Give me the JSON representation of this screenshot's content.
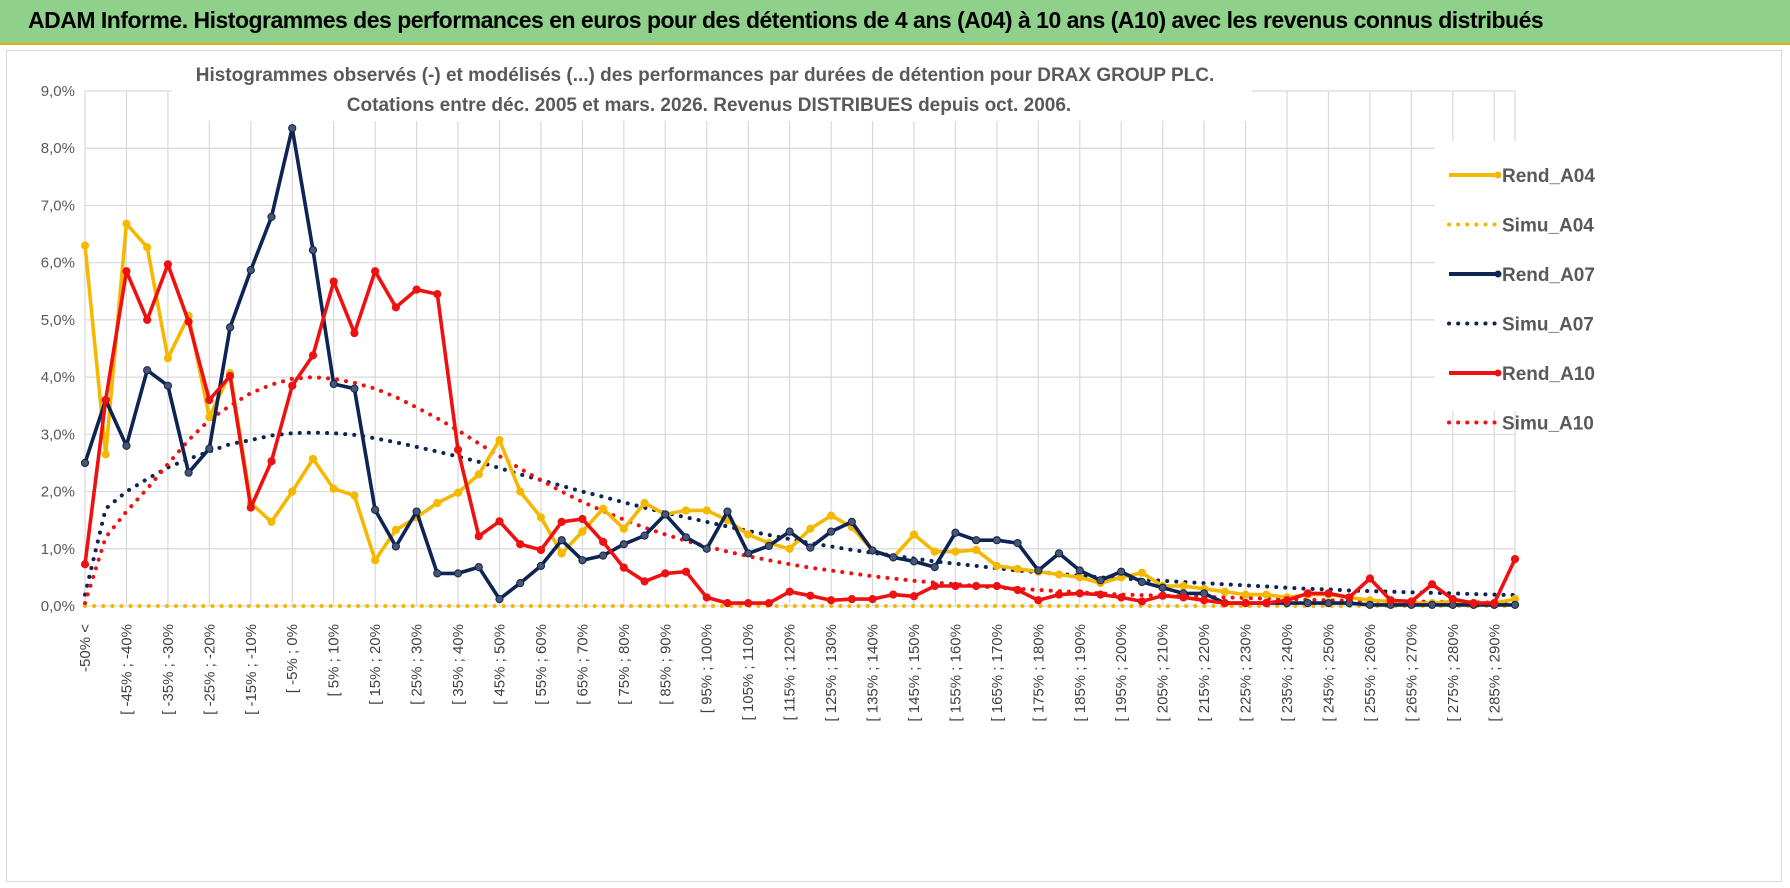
{
  "banner": {
    "title": "ADAM Informe. Histogrammes des performances en euros pour des détentions de 4 ans (A04) à 10 ans (A10) avec les revenus connus distribués"
  },
  "colors": {
    "A04": "#f5b800",
    "A07": "#0d2454",
    "A10": "#ee1111",
    "banner_bg": "#8fd18b",
    "grid": "#d9d9d9"
  },
  "chart_data": {
    "type": "line",
    "title": "Histogrammes observés (-) et modélisés (...) des performances par durées de détention pour DRAX GROUP PLC.",
    "subtitle": "Cotations entre déc. 2005 et mars. 2026. Revenus DISTRIBUES depuis oct. 2006.",
    "xlabel": "",
    "ylabel": "",
    "ylim": [
      0,
      9
    ],
    "y_ticks": [
      "0,0%",
      "1,0%",
      "2,0%",
      "3,0%",
      "4,0%",
      "5,0%",
      "6,0%",
      "7,0%",
      "8,0%",
      "9,0%"
    ],
    "x_tick_labels": [
      "-50% <",
      "[ -45% ; -40%",
      "[ -35% ; -30%",
      "[ -25% ; -20%",
      "[ -15% ; -10%",
      "[ -5% ; 0%",
      "[ 5% ; 10%",
      "[ 15% ; 20%",
      "[ 25% ; 30%",
      "[ 35% ; 40%",
      "[ 45% ; 50%",
      "[ 55% ; 60%",
      "[ 65% ; 70%",
      "[ 75% ; 80%",
      "[ 85% ; 90%",
      "[ 95% ; 100%",
      "[ 105% ; 110%",
      "[ 115% ; 120%",
      "[ 125% ; 130%",
      "[ 135% ; 140%",
      "[ 145% ; 150%",
      "[ 155% ; 160%",
      "[ 165% ; 170%",
      "[ 175% ; 180%",
      "[ 185% ; 190%",
      "[ 195% ; 200%",
      "[ 205% ; 210%",
      "[ 215% ; 220%",
      "[ 225% ; 230%",
      "[ 235% ; 240%",
      "[ 245% ; 250%",
      "[ 255% ; 260%",
      "[ 265% ; 270%",
      "[ 275% ; 280%",
      "[ 285% ; 290%"
    ],
    "n_categories": 70,
    "legend_position": "right",
    "grid": true,
    "series": [
      {
        "name": "Rend_A04",
        "style": "solid",
        "color_key": "A04",
        "values": [
          6.3,
          2.65,
          6.68,
          6.27,
          4.33,
          5.07,
          3.3,
          4.07,
          1.8,
          1.47,
          2.0,
          2.57,
          2.05,
          1.93,
          0.8,
          1.33,
          1.55,
          1.8,
          1.98,
          2.3,
          2.9,
          2.0,
          1.55,
          0.92,
          1.3,
          1.7,
          1.35,
          1.8,
          1.6,
          1.67,
          1.67,
          1.5,
          1.25,
          1.1,
          1.0,
          1.35,
          1.58,
          1.38,
          0.97,
          0.85,
          1.25,
          0.95,
          0.95,
          0.98,
          0.7,
          0.65,
          0.6,
          0.55,
          0.5,
          0.4,
          0.5,
          0.58,
          0.35,
          0.35,
          0.3,
          0.25,
          0.2,
          0.2,
          0.15,
          0.2,
          0.2,
          0.15,
          0.1,
          0.08,
          0.05,
          0.05,
          0.08,
          0.05,
          0.05,
          0.12
        ]
      },
      {
        "name": "Simu_A04",
        "style": "dotted",
        "color_key": "A04",
        "values": [
          0.0,
          0.0,
          0.0,
          0.0,
          0.0,
          0.0,
          0.0,
          0.0,
          0.0,
          0.0,
          0.0,
          0.0,
          0.0,
          0.0,
          0.0,
          0.0,
          0.0,
          0.0,
          0.0,
          0.0,
          0.0,
          0.0,
          0.0,
          0.0,
          0.0,
          0.0,
          0.0,
          0.0,
          0.0,
          0.0,
          0.0,
          0.0,
          0.0,
          0.0,
          0.0,
          0.0,
          0.0,
          0.0,
          0.0,
          0.0,
          0.0,
          0.0,
          0.0,
          0.0,
          0.0,
          0.0,
          0.0,
          0.0,
          0.0,
          0.0,
          0.0,
          0.0,
          0.0,
          0.0,
          0.0,
          0.0,
          0.0,
          0.0,
          0.0,
          0.0,
          0.0,
          0.0,
          0.0,
          0.0,
          0.0,
          0.0,
          0.0,
          0.0,
          0.0,
          0.0
        ]
      },
      {
        "name": "Rend_A07",
        "style": "solid",
        "color_key": "A07",
        "values": [
          2.5,
          3.6,
          2.8,
          4.12,
          3.85,
          2.33,
          2.75,
          4.87,
          5.87,
          6.8,
          8.35,
          6.22,
          3.88,
          3.8,
          1.68,
          1.04,
          1.65,
          0.57,
          0.57,
          0.68,
          0.12,
          0.4,
          0.7,
          1.15,
          0.8,
          0.88,
          1.08,
          1.23,
          1.6,
          1.2,
          1.0,
          1.65,
          0.92,
          1.05,
          1.3,
          1.02,
          1.3,
          1.47,
          0.97,
          0.85,
          0.78,
          0.68,
          1.28,
          1.15,
          1.15,
          1.1,
          0.62,
          0.92,
          0.62,
          0.45,
          0.6,
          0.42,
          0.32,
          0.22,
          0.22,
          0.05,
          0.05,
          0.05,
          0.05,
          0.05,
          0.05,
          0.05,
          0.02,
          0.02,
          0.02,
          0.02,
          0.02,
          0.02,
          0.02,
          0.02
        ]
      },
      {
        "name": "Simu_A07",
        "style": "dotted",
        "color_key": "A07",
        "values": [
          0.2,
          1.7,
          2.0,
          2.22,
          2.42,
          2.57,
          2.7,
          2.83,
          2.9,
          2.98,
          3.02,
          3.03,
          3.02,
          2.99,
          2.93,
          2.86,
          2.78,
          2.7,
          2.61,
          2.52,
          2.41,
          2.3,
          2.2,
          2.1,
          2.0,
          1.91,
          1.81,
          1.72,
          1.63,
          1.55,
          1.47,
          1.39,
          1.31,
          1.24,
          1.17,
          1.1,
          1.04,
          0.98,
          0.93,
          0.88,
          0.83,
          0.78,
          0.74,
          0.7,
          0.66,
          0.62,
          0.59,
          0.56,
          0.53,
          0.5,
          0.48,
          0.46,
          0.44,
          0.42,
          0.4,
          0.38,
          0.36,
          0.34,
          0.32,
          0.3,
          0.29,
          0.27,
          0.26,
          0.25,
          0.24,
          0.23,
          0.22,
          0.21,
          0.2,
          0.19
        ]
      },
      {
        "name": "Rend_A10",
        "style": "solid",
        "color_key": "A10",
        "values": [
          0.73,
          3.6,
          5.85,
          5.0,
          5.97,
          4.97,
          3.6,
          4.02,
          1.72,
          2.53,
          3.85,
          4.38,
          5.67,
          4.77,
          5.85,
          5.22,
          5.53,
          5.45,
          2.73,
          1.22,
          1.48,
          1.08,
          0.98,
          1.47,
          1.52,
          1.12,
          0.67,
          0.43,
          0.57,
          0.6,
          0.15,
          0.05,
          0.05,
          0.05,
          0.25,
          0.18,
          0.1,
          0.12,
          0.12,
          0.2,
          0.17,
          0.35,
          0.35,
          0.35,
          0.35,
          0.28,
          0.1,
          0.2,
          0.22,
          0.2,
          0.15,
          0.08,
          0.18,
          0.15,
          0.1,
          0.05,
          0.05,
          0.05,
          0.1,
          0.22,
          0.22,
          0.15,
          0.48,
          0.1,
          0.08,
          0.38,
          0.12,
          0.05,
          0.05,
          0.82
        ]
      },
      {
        "name": "Simu_A10",
        "style": "dotted",
        "color_key": "A10",
        "values": [
          0.05,
          1.2,
          1.65,
          2.05,
          2.48,
          2.9,
          3.25,
          3.5,
          3.72,
          3.87,
          3.97,
          4.0,
          3.97,
          3.9,
          3.8,
          3.65,
          3.47,
          3.28,
          3.07,
          2.84,
          2.62,
          2.4,
          2.2,
          2.0,
          1.82,
          1.66,
          1.51,
          1.37,
          1.25,
          1.14,
          1.04,
          0.95,
          0.87,
          0.8,
          0.73,
          0.67,
          0.62,
          0.57,
          0.52,
          0.48,
          0.44,
          0.41,
          0.38,
          0.35,
          0.32,
          0.3,
          0.28,
          0.26,
          0.24,
          0.22,
          0.2,
          0.19,
          0.18,
          0.17,
          0.16,
          0.15,
          0.14,
          0.13,
          0.12,
          0.11,
          0.1,
          0.095,
          0.09,
          0.085,
          0.08,
          0.075,
          0.07,
          0.065,
          0.06,
          0.055
        ]
      }
    ]
  }
}
